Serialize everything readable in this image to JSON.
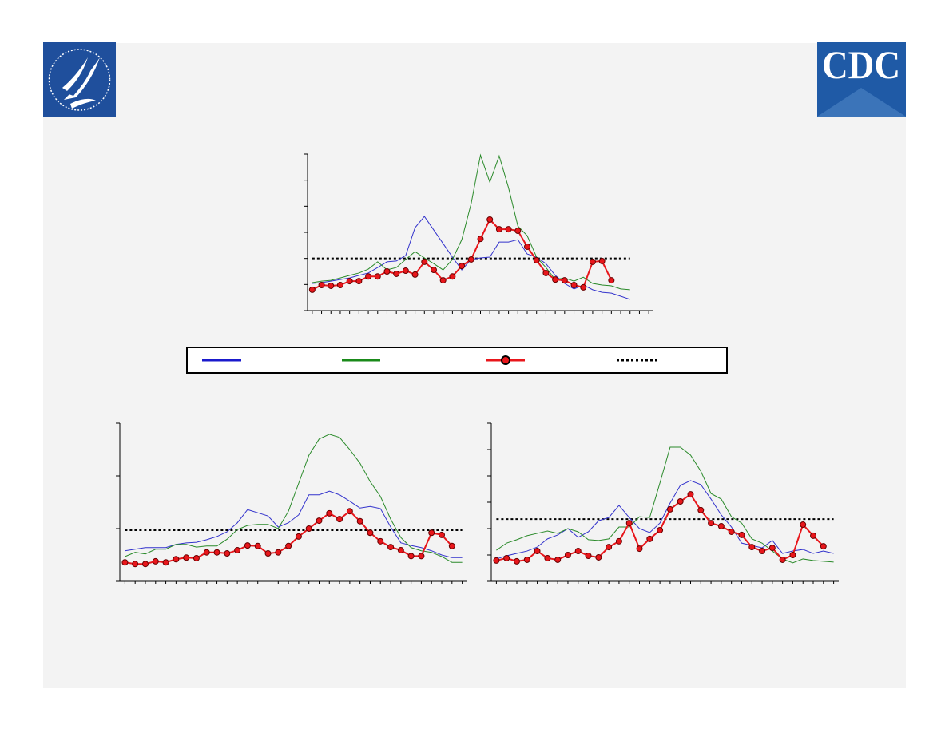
{
  "logo": {
    "text": "CDC"
  },
  "chart_data": [
    {
      "type": "line",
      "x": [
        0,
        1,
        2,
        3,
        4,
        5,
        6,
        7,
        8,
        9,
        10,
        11,
        12,
        13,
        14,
        15,
        16,
        17,
        18,
        19,
        20,
        21,
        22,
        23,
        24,
        25,
        26,
        27,
        28,
        29,
        30,
        31,
        32,
        33,
        34
      ],
      "xlim": [
        -0.5,
        36.5
      ],
      "ylim": [
        0,
        6
      ],
      "yticks": [
        0,
        1,
        2,
        3,
        4,
        5,
        6
      ],
      "xticks": [
        0,
        1,
        2,
        3,
        4,
        5,
        6,
        7,
        8,
        9,
        10,
        11,
        12,
        13,
        14,
        15,
        16,
        17,
        18,
        19,
        20,
        21,
        22,
        23,
        24,
        25,
        26,
        27,
        28,
        29,
        30,
        31,
        32,
        33,
        34,
        35,
        36
      ],
      "reference_line": {
        "value": 2.0,
        "color": "#000000"
      },
      "series": [
        {
          "color": "#3333cc",
          "values": [
            1.04,
            1.07,
            1.13,
            1.19,
            1.25,
            1.35,
            1.44,
            1.65,
            1.87,
            1.9,
            2.11,
            3.18,
            3.61,
            3.09,
            2.57,
            2.05,
            1.56,
            1.96,
            2.02,
            2.05,
            2.63,
            2.63,
            2.72,
            2.17,
            2.05,
            1.8,
            1.35,
            1.04,
            0.83,
            0.98,
            0.8,
            0.7,
            0.67,
            0.55,
            0.43
          ]
        },
        {
          "color": "#2a8a2a",
          "values": [
            1.07,
            1.13,
            1.16,
            1.25,
            1.35,
            1.44,
            1.59,
            1.87,
            1.56,
            1.65,
            1.96,
            2.26,
            2.02,
            1.8,
            1.56,
            1.96,
            2.72,
            4.1,
            5.96,
            4.92,
            5.93,
            4.71,
            3.24,
            2.87,
            2.05,
            1.65,
            1.19,
            1.25,
            1.13,
            1.28,
            1.04,
            0.98,
            0.95,
            0.83,
            0.8
          ]
        },
        {
          "color": "#e8161b",
          "marker": true,
          "values": [
            0.8,
            0.98,
            0.95,
            0.98,
            1.13,
            1.13,
            1.31,
            1.31,
            1.5,
            1.41,
            1.53,
            1.38,
            1.87,
            1.56,
            1.16,
            1.31,
            1.71,
            1.96,
            2.75,
            3.49,
            3.12,
            3.12,
            3.06,
            2.45,
            1.93,
            1.44,
            1.19,
            1.16,
            0.98,
            0.89,
            1.87,
            1.9,
            1.16,
            null,
            null
          ]
        }
      ]
    },
    {
      "type": "line",
      "x": [
        0,
        1,
        2,
        3,
        4,
        5,
        6,
        7,
        8,
        9,
        10,
        11,
        12,
        13,
        14,
        15,
        16,
        17,
        18,
        19,
        20,
        21,
        22,
        23,
        24,
        25,
        26,
        27,
        28,
        29,
        30,
        31,
        32,
        33
      ],
      "xlim": [
        -0.5,
        33.5
      ],
      "ylim": [
        0,
        3
      ],
      "yticks": [
        0,
        1,
        2,
        3
      ],
      "xticks": [
        0,
        1,
        2,
        3,
        4,
        5,
        6,
        7,
        8,
        9,
        10,
        11,
        12,
        13,
        14,
        15,
        16,
        17,
        18,
        19,
        20,
        21,
        22,
        23,
        24,
        25,
        26,
        27,
        28,
        29,
        30,
        31,
        32,
        33
      ],
      "reference_line": {
        "value": 0.97,
        "color": "#000000"
      },
      "series": [
        {
          "color": "#3333cc",
          "values": [
            0.58,
            0.61,
            0.64,
            0.64,
            0.64,
            0.7,
            0.73,
            0.74,
            0.79,
            0.85,
            0.94,
            1.11,
            1.36,
            1.3,
            1.24,
            1.03,
            1.11,
            1.26,
            1.64,
            1.64,
            1.71,
            1.64,
            1.52,
            1.39,
            1.42,
            1.38,
            1.03,
            0.73,
            0.68,
            0.64,
            0.58,
            0.5,
            0.45,
            0.45
          ]
        },
        {
          "color": "#2a8a2a",
          "values": [
            0.47,
            0.55,
            0.52,
            0.61,
            0.61,
            0.7,
            0.7,
            0.65,
            0.67,
            0.67,
            0.8,
            0.98,
            1.06,
            1.08,
            1.08,
            1.0,
            1.33,
            1.86,
            2.39,
            2.7,
            2.79,
            2.73,
            2.5,
            2.24,
            1.89,
            1.61,
            1.18,
            0.83,
            0.64,
            0.58,
            0.55,
            0.47,
            0.36,
            0.36
          ]
        },
        {
          "color": "#e8161b",
          "marker": true,
          "values": [
            0.36,
            0.33,
            0.33,
            0.38,
            0.36,
            0.42,
            0.45,
            0.44,
            0.55,
            0.55,
            0.53,
            0.59,
            0.68,
            0.67,
            0.53,
            0.55,
            0.67,
            0.85,
            1.0,
            1.15,
            1.29,
            1.18,
            1.33,
            1.14,
            0.92,
            0.76,
            0.65,
            0.59,
            0.48,
            0.48,
            0.92,
            0.88,
            0.67,
            null
          ]
        }
      ]
    },
    {
      "type": "line",
      "x": [
        0,
        1,
        2,
        3,
        4,
        5,
        6,
        7,
        8,
        9,
        10,
        11,
        12,
        13,
        14,
        15,
        16,
        17,
        18,
        19,
        20,
        21,
        22,
        23,
        24,
        25,
        26,
        27,
        28,
        29,
        30,
        31,
        32,
        33
      ],
      "xlim": [
        -0.5,
        33.5
      ],
      "ylim": [
        0,
        6
      ],
      "yticks": [
        0,
        1,
        2,
        3,
        4,
        5,
        6
      ],
      "xticks": [
        0,
        1,
        2,
        3,
        4,
        5,
        6,
        7,
        8,
        9,
        10,
        11,
        12,
        13,
        14,
        15,
        16,
        17,
        18,
        19,
        20,
        21,
        22,
        23,
        24,
        25,
        26,
        27,
        28,
        29,
        30,
        31,
        32,
        33
      ],
      "reference_line": {
        "value": 2.36,
        "color": "#000000"
      },
      "series": [
        {
          "color": "#3333cc",
          "values": [
            0.85,
            0.97,
            1.06,
            1.15,
            1.3,
            1.61,
            1.76,
            2.0,
            1.67,
            1.88,
            2.3,
            2.42,
            2.88,
            2.42,
            2.0,
            1.85,
            2.21,
            2.97,
            3.64,
            3.82,
            3.67,
            3.12,
            2.52,
            2.06,
            1.45,
            1.36,
            1.27,
            1.55,
            1.06,
            1.15,
            1.21,
            1.06,
            1.15,
            1.06
          ]
        },
        {
          "color": "#2a8a2a",
          "values": [
            1.18,
            1.45,
            1.58,
            1.73,
            1.82,
            1.91,
            1.82,
            2.0,
            1.88,
            1.58,
            1.55,
            1.61,
            2.06,
            2.06,
            2.45,
            2.42,
            3.73,
            5.09,
            5.09,
            4.79,
            4.18,
            3.33,
            3.12,
            2.45,
            2.21,
            1.61,
            1.45,
            1.15,
            0.85,
            0.7,
            0.85,
            0.79,
            0.76,
            0.73
          ]
        },
        {
          "color": "#e8161b",
          "marker": true,
          "values": [
            0.79,
            0.88,
            0.76,
            0.82,
            1.15,
            0.88,
            0.82,
            1.0,
            1.15,
            0.97,
            0.91,
            1.3,
            1.52,
            2.21,
            1.24,
            1.61,
            1.94,
            2.73,
            3.03,
            3.3,
            2.7,
            2.21,
            2.09,
            1.88,
            1.76,
            1.3,
            1.15,
            1.27,
            0.82,
            1.0,
            2.15,
            1.73,
            1.33,
            null
          ]
        }
      ]
    }
  ]
}
